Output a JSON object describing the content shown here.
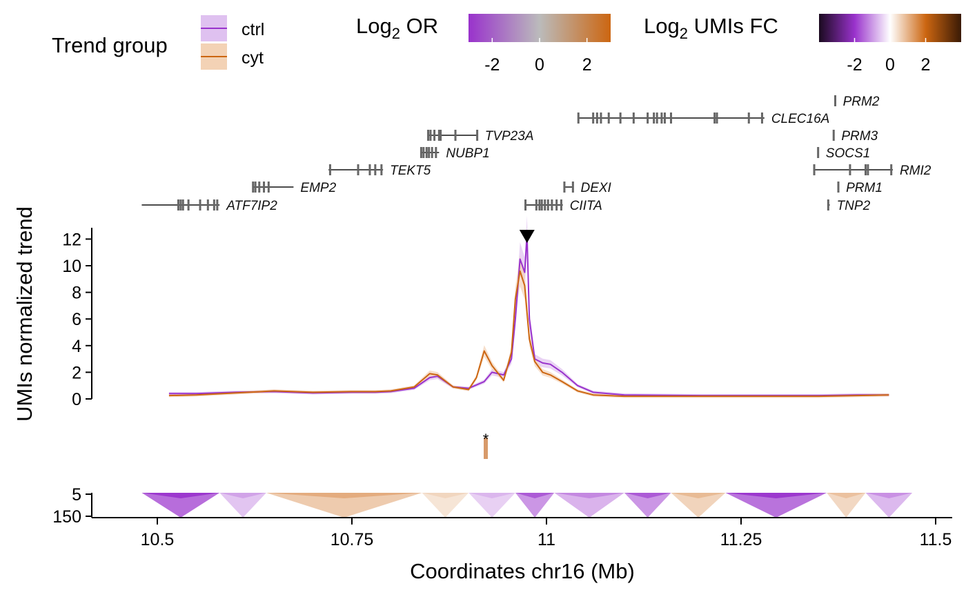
{
  "chart_data": {
    "type": "line",
    "xlabel": "Coordinates chr16 (Mb)",
    "ylabel": "UMIs normalized trend",
    "xlim": [
      10.43,
      11.52
    ],
    "ylim": [
      0,
      12.6
    ],
    "x_ticks": [
      {
        "value": 10.5,
        "label": "10.5"
      },
      {
        "value": 10.75,
        "label": "10.75"
      },
      {
        "value": 11.0,
        "label": "11"
      },
      {
        "value": 11.25,
        "label": "11.25"
      },
      {
        "value": 11.5,
        "label": "11.5"
      }
    ],
    "y_ticks": [
      {
        "value": 0,
        "label": "0"
      },
      {
        "value": 2,
        "label": "2"
      },
      {
        "value": 4,
        "label": "4"
      },
      {
        "value": 6,
        "label": "6"
      },
      {
        "value": 8,
        "label": "8"
      },
      {
        "value": 10,
        "label": "10"
      },
      {
        "value": 12,
        "label": "12"
      }
    ],
    "viewpoint": 10.975,
    "legend": {
      "title": "Trend group",
      "placement": "top-left",
      "entries": [
        {
          "name": "ctrl",
          "color": "#9932cc",
          "band": "#dfc1f0"
        },
        {
          "name": "cyt",
          "color": "#cc6611",
          "band": "#f3d2b5"
        }
      ]
    },
    "or_scale": {
      "title_main": "Log",
      "title_sub": "2",
      "title_rest": " OR",
      "colors": [
        "#9932cc",
        "#bbbbbb",
        "#cc6611"
      ],
      "ticks": [
        {
          "value": -2,
          "label": "-2"
        },
        {
          "value": 0,
          "label": "0"
        },
        {
          "value": 2,
          "label": "2"
        }
      ],
      "range": [
        -3,
        3
      ]
    },
    "fc_scale": {
      "title_main": "Log",
      "title_sub": "2",
      "title_rest": " UMIs FC",
      "colors": [
        "#1a0a1f",
        "#9932cc",
        "#ffffff",
        "#cc6611",
        "#3a1a05"
      ],
      "ticks": [
        {
          "value": -2,
          "label": "-2"
        },
        {
          "value": 0,
          "label": "0"
        },
        {
          "value": 2,
          "label": "2"
        }
      ],
      "range": [
        -4,
        4
      ]
    },
    "genes": [
      {
        "name": "ATF7IP2",
        "start": 10.48,
        "end": 10.58,
        "exons": [
          10.527,
          10.53,
          10.533,
          10.54,
          10.555,
          10.565,
          10.573,
          10.577
        ]
      },
      {
        "name": "EMP2",
        "start": 10.622,
        "end": 10.675,
        "exons": [
          10.623,
          10.626,
          10.631,
          10.637,
          10.643
        ]
      },
      {
        "name": "TEKT5",
        "start": 10.72,
        "end": 10.79,
        "exons": [
          10.722,
          10.758,
          10.773,
          10.78,
          10.788
        ]
      },
      {
        "name": "NUBP1",
        "start": 10.838,
        "end": 10.862,
        "exons": [
          10.839,
          10.842,
          10.846,
          10.849,
          10.853,
          10.858
        ]
      },
      {
        "name": "TVP23A",
        "start": 10.847,
        "end": 10.912,
        "exons": [
          10.848,
          10.851,
          10.856,
          10.862,
          10.864,
          10.883,
          10.911
        ]
      },
      {
        "name": "DEXI",
        "start": 11.022,
        "end": 11.035,
        "exons": [
          11.023,
          11.034
        ]
      },
      {
        "name": "CIITA",
        "start": 10.972,
        "end": 11.021,
        "exons": [
          10.973,
          10.987,
          10.991,
          10.994,
          10.998,
          11.002,
          11.007,
          11.013,
          11.019
        ]
      },
      {
        "name": "CLEC16A",
        "start": 11.04,
        "end": 11.28,
        "exons": [
          11.041,
          11.06,
          11.065,
          11.07,
          11.08,
          11.095,
          11.112,
          11.13,
          11.138,
          11.142,
          11.148,
          11.152,
          11.16,
          11.216,
          11.219,
          11.26,
          11.277
        ]
      },
      {
        "name": "PRM2",
        "start": 11.37,
        "end": 11.372,
        "exons": [
          11.371
        ]
      },
      {
        "name": "PRM3",
        "start": 11.368,
        "end": 11.37,
        "exons": [
          11.369
        ]
      },
      {
        "name": "SOCS1",
        "start": 11.348,
        "end": 11.35,
        "exons": [
          11.349
        ]
      },
      {
        "name": "RMI2",
        "start": 11.343,
        "end": 11.445,
        "exons": [
          11.344,
          11.39,
          11.41,
          11.413,
          11.443
        ]
      },
      {
        "name": "PRM1",
        "start": 11.374,
        "end": 11.376,
        "exons": [
          11.375
        ]
      },
      {
        "name": "TNP2",
        "start": 11.361,
        "end": 11.364,
        "exons": [
          11.362
        ]
      }
    ],
    "series": [
      {
        "name": "ctrl",
        "x": [
          10.515,
          10.55,
          10.6,
          10.65,
          10.7,
          10.75,
          10.78,
          10.8,
          10.83,
          10.85,
          10.86,
          10.88,
          10.9,
          10.92,
          10.93,
          10.945,
          10.955,
          10.96,
          10.966,
          10.972,
          10.975,
          10.978,
          10.985,
          10.995,
          11.005,
          11.02,
          11.04,
          11.06,
          11.1,
          11.2,
          11.3,
          11.35,
          11.4,
          11.44
        ],
        "y": [
          0.4,
          0.4,
          0.5,
          0.55,
          0.45,
          0.5,
          0.5,
          0.55,
          0.8,
          1.6,
          1.7,
          0.9,
          0.8,
          1.3,
          2.0,
          1.8,
          3.0,
          6.0,
          10.5,
          9.5,
          12.3,
          6.0,
          3.0,
          2.7,
          2.6,
          2.0,
          1.0,
          0.5,
          0.3,
          0.25,
          0.25,
          0.25,
          0.3,
          0.3
        ]
      },
      {
        "name": "cyt",
        "x": [
          10.515,
          10.55,
          10.6,
          10.65,
          10.7,
          10.75,
          10.78,
          10.8,
          10.83,
          10.85,
          10.86,
          10.88,
          10.9,
          10.91,
          10.92,
          10.93,
          10.945,
          10.955,
          10.96,
          10.966,
          10.972,
          10.975,
          10.978,
          10.985,
          10.995,
          11.005,
          11.02,
          11.04,
          11.06,
          11.1,
          11.2,
          11.3,
          11.35,
          11.4,
          11.44
        ],
        "y": [
          0.25,
          0.3,
          0.45,
          0.6,
          0.5,
          0.55,
          0.55,
          0.6,
          0.9,
          1.9,
          1.8,
          0.9,
          0.7,
          1.6,
          3.6,
          2.5,
          1.4,
          3.5,
          7.5,
          9.6,
          8.5,
          6.5,
          4.5,
          2.8,
          2.0,
          1.8,
          1.3,
          0.6,
          0.3,
          0.2,
          0.2,
          0.2,
          0.2,
          0.25,
          0.3
        ]
      }
    ],
    "or_signal": {
      "x": 10.922,
      "value": 2.2,
      "annotation": "*"
    },
    "heatmap": {
      "y_ticks": [
        {
          "value": 5,
          "label": "5"
        },
        {
          "value": 150,
          "label": "150"
        }
      ],
      "x_range": [
        10.48,
        11.47
      ],
      "blocks": [
        {
          "start": 10.48,
          "end": 10.58,
          "value": -2.5
        },
        {
          "start": 10.58,
          "end": 10.64,
          "value": -1.0
        },
        {
          "start": 10.64,
          "end": 10.84,
          "value": 1.2
        },
        {
          "start": 10.84,
          "end": 10.9,
          "value": 0.6
        },
        {
          "start": 10.9,
          "end": 10.96,
          "value": -0.8
        },
        {
          "start": 10.96,
          "end": 11.01,
          "value": -1.8
        },
        {
          "start": 11.01,
          "end": 11.1,
          "value": -1.3
        },
        {
          "start": 11.1,
          "end": 11.16,
          "value": -1.8
        },
        {
          "start": 11.16,
          "end": 11.23,
          "value": 1.0
        },
        {
          "start": 11.23,
          "end": 11.36,
          "value": -2.4
        },
        {
          "start": 11.36,
          "end": 11.41,
          "value": 0.9
        },
        {
          "start": 11.41,
          "end": 11.47,
          "value": -1.2
        }
      ]
    }
  }
}
